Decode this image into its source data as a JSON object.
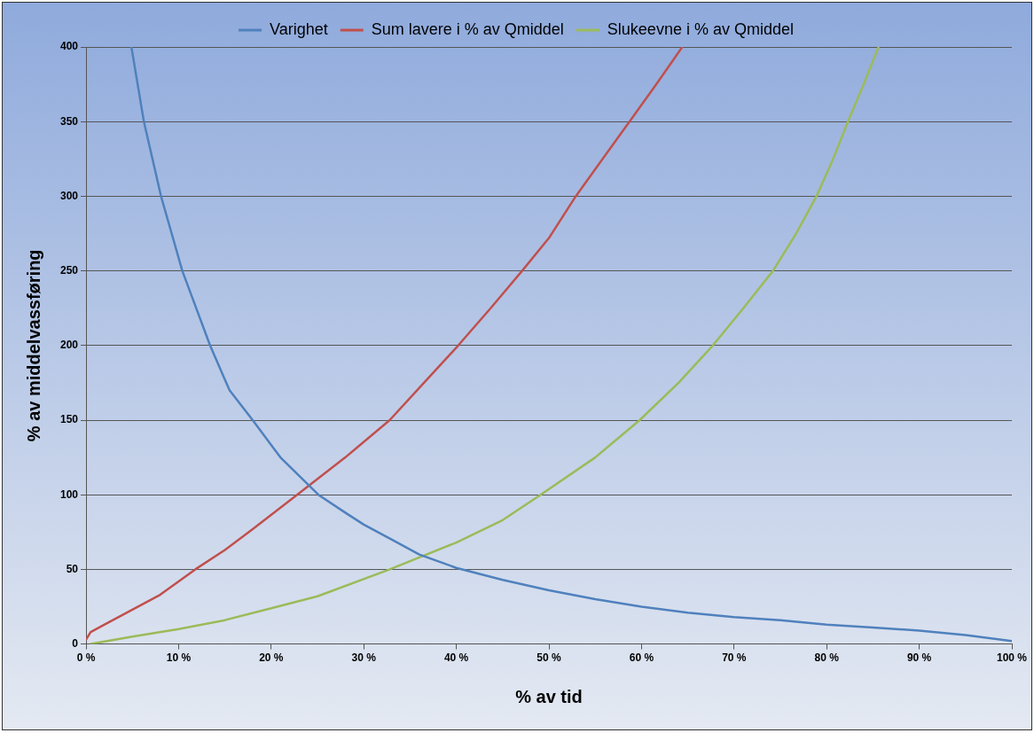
{
  "chart_data": {
    "type": "line",
    "xlabel": "% av tid",
    "ylabel": "% av middelvassføring",
    "xlim": [
      0,
      100
    ],
    "ylim": [
      0,
      400
    ],
    "xticks": [
      {
        "value": 0,
        "label": "0 %"
      },
      {
        "value": 10,
        "label": "10 %"
      },
      {
        "value": 20,
        "label": "20 %"
      },
      {
        "value": 30,
        "label": "30 %"
      },
      {
        "value": 40,
        "label": "40 %"
      },
      {
        "value": 50,
        "label": "50 %"
      },
      {
        "value": 60,
        "label": "60 %"
      },
      {
        "value": 70,
        "label": "70 %"
      },
      {
        "value": 80,
        "label": "80 %"
      },
      {
        "value": 90,
        "label": "90 %"
      },
      {
        "value": 100,
        "label": "100 %"
      }
    ],
    "yticks": [
      0,
      50,
      100,
      150,
      200,
      250,
      300,
      350,
      400
    ],
    "grid": "y",
    "legend": "top",
    "marker": "none",
    "line_style": "solid",
    "series": [
      {
        "name": "Varighet",
        "color": "#4f81bd",
        "x": [
          4.9,
          6.25,
          8.1,
          10.4,
          13.4,
          15.5,
          18,
          21,
          25.1,
          28,
          30,
          33,
          36,
          40,
          45,
          50,
          55,
          60,
          65,
          70,
          75,
          80,
          85,
          90,
          95,
          100
        ],
        "values": [
          400,
          350,
          300,
          250,
          200,
          170,
          150,
          125,
          100,
          88,
          80,
          70,
          60,
          51,
          43,
          36,
          30,
          25,
          21,
          18,
          16,
          13,
          11,
          9,
          6,
          2
        ]
      },
      {
        "name": "Sum lavere i % av Qmiddel",
        "color": "#c0504d",
        "x": [
          0,
          0.5,
          2,
          5,
          8,
          11.8,
          15,
          18,
          22.8,
          28,
          32.8,
          36.5,
          40.2,
          43.7,
          47.1,
          50,
          52.9,
          55.8,
          58.7,
          61.6,
          64.4
        ],
        "values": [
          3,
          8,
          13,
          23,
          33,
          50,
          63,
          77,
          100,
          125,
          150,
          175,
          200,
          225,
          250,
          272,
          300,
          325,
          350,
          375,
          400
        ]
      },
      {
        "name": "Slukeevne i % av Qmiddel",
        "color": "#9bbb59",
        "x": [
          0.5,
          5,
          10,
          15,
          20,
          25,
          32.8,
          40,
          45,
          49.1,
          55,
          59.8,
          64,
          67.7,
          71,
          74.2,
          76.7,
          78.9,
          80.7,
          82.3,
          84,
          85.6
        ],
        "values": [
          0,
          5,
          10,
          16,
          24,
          32,
          50,
          68,
          83,
          100,
          125,
          150,
          175,
          200,
          225,
          250,
          275,
          300,
          325,
          350,
          375,
          400
        ]
      }
    ]
  }
}
